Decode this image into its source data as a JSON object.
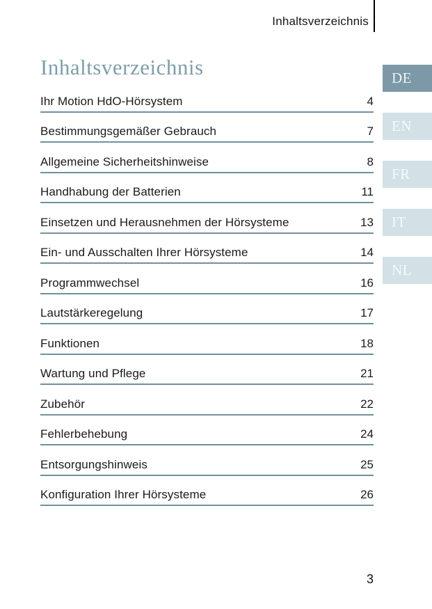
{
  "header": {
    "running_title": "Inhaltsverzeichnis"
  },
  "page": {
    "title": "Inhaltsverzeichnis",
    "number": "3"
  },
  "toc": {
    "entries": [
      {
        "label": "Ihr Motion HdO-Hörsystem",
        "page": "4"
      },
      {
        "label": "Bestimmungsgemäßer Gebrauch",
        "page": "7"
      },
      {
        "label": "Allgemeine Sicherheitshinweise",
        "page": "8"
      },
      {
        "label": "Handhabung der Batterien",
        "page": "11"
      },
      {
        "label": "Einsetzen und Herausnehmen der Hörsysteme",
        "page": "13"
      },
      {
        "label": "Ein- und Ausschalten Ihrer Hörsysteme",
        "page": "14"
      },
      {
        "label": "Programmwechsel",
        "page": "16"
      },
      {
        "label": "Lautstärkeregelung",
        "page": "17"
      },
      {
        "label": "Funktionen",
        "page": "18"
      },
      {
        "label": "Wartung und Pflege",
        "page": "21"
      },
      {
        "label": "Zubehör",
        "page": "22"
      },
      {
        "label": "Fehlerbehebung",
        "page": "24"
      },
      {
        "label": "Entsorgungshinweis",
        "page": "25"
      },
      {
        "label": "Konfiguration Ihrer Hörsysteme",
        "page": "26"
      }
    ]
  },
  "language_tabs": {
    "active": "DE",
    "items": [
      {
        "code": "DE"
      },
      {
        "code": "EN"
      },
      {
        "code": "FR"
      },
      {
        "code": "IT"
      },
      {
        "code": "NL"
      }
    ]
  },
  "colors": {
    "title": "#7f9dab",
    "rule_line": "#6f909f",
    "tab_active_bg": "#7d99a7",
    "tab_inactive_bg": "#d3e0e6",
    "tab_text": "#f6fafb",
    "body_text": "#1a1a1a",
    "header_rule": "#000000"
  }
}
